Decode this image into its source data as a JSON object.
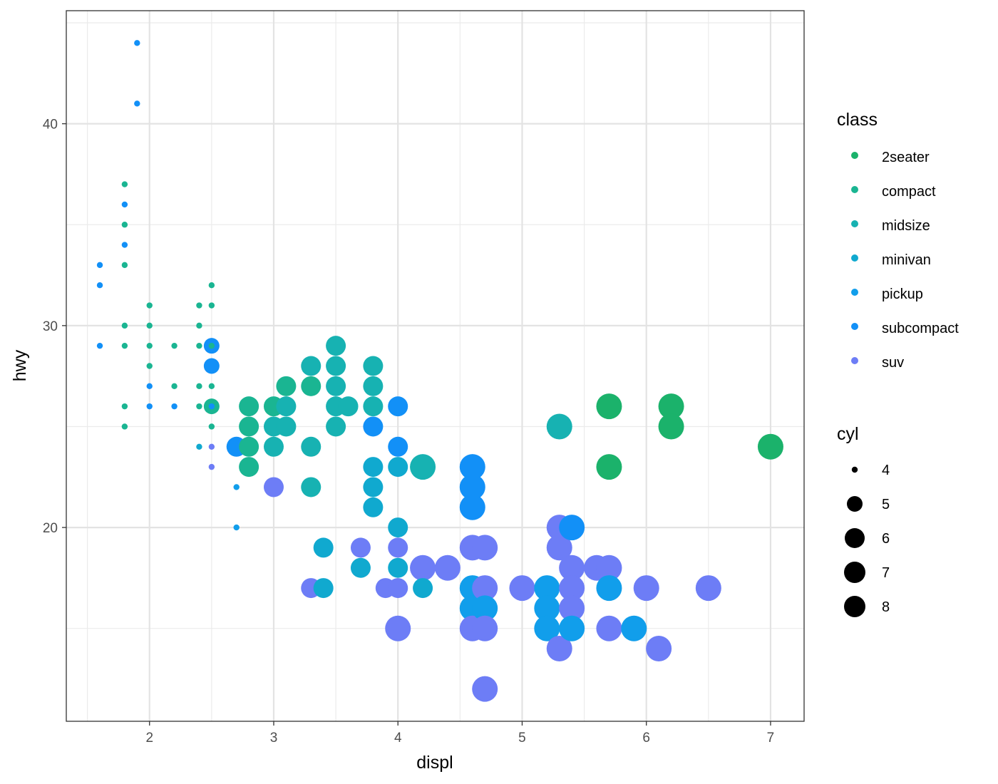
{
  "chart_data": {
    "type": "scatter",
    "xlabel": "displ",
    "ylabel": "hwy",
    "xlim": [
      1.33,
      7.27
    ],
    "ylim": [
      10.4,
      45.6
    ],
    "x_ticks": [
      2,
      3,
      4,
      5,
      6,
      7
    ],
    "y_ticks": [
      20,
      30,
      40
    ],
    "x_tick_labels": [
      "2",
      "3",
      "4",
      "5",
      "6",
      "7"
    ],
    "y_tick_labels": [
      "20",
      "30",
      "40"
    ],
    "grid": true,
    "legend_position": "right",
    "color_legend": {
      "title": "class",
      "entries": [
        {
          "label": "2seater",
          "color": "#1BB26B"
        },
        {
          "label": "compact",
          "color": "#1AB592"
        },
        {
          "label": "midsize",
          "color": "#17B2B2"
        },
        {
          "label": "minivan",
          "color": "#10A9CF"
        },
        {
          "label": "pickup",
          "color": "#119EEB"
        },
        {
          "label": "subcompact",
          "color": "#1290F7"
        },
        {
          "label": "suv",
          "color": "#6D7DF6"
        }
      ]
    },
    "size_legend": {
      "title": "cyl",
      "entries": [
        {
          "label": "4",
          "value": 4
        },
        {
          "label": "5",
          "value": 5
        },
        {
          "label": "6",
          "value": 6
        },
        {
          "label": "7",
          "value": 7
        },
        {
          "label": "8",
          "value": 8
        }
      ]
    },
    "points": [
      {
        "displ": 1.9,
        "hwy": 44,
        "class": "subcompact",
        "cyl": 4
      },
      {
        "displ": 1.9,
        "hwy": 41,
        "class": "subcompact",
        "cyl": 4
      },
      {
        "displ": 1.8,
        "hwy": 37,
        "class": "compact",
        "cyl": 4
      },
      {
        "displ": 1.8,
        "hwy": 36,
        "class": "subcompact",
        "cyl": 4
      },
      {
        "displ": 1.8,
        "hwy": 35,
        "class": "compact",
        "cyl": 4
      },
      {
        "displ": 1.8,
        "hwy": 34,
        "class": "subcompact",
        "cyl": 4
      },
      {
        "displ": 1.8,
        "hwy": 33,
        "class": "compact",
        "cyl": 4
      },
      {
        "displ": 1.6,
        "hwy": 33,
        "class": "subcompact",
        "cyl": 4
      },
      {
        "displ": 1.6,
        "hwy": 32,
        "class": "subcompact",
        "cyl": 4
      },
      {
        "displ": 1.6,
        "hwy": 29,
        "class": "subcompact",
        "cyl": 4
      },
      {
        "displ": 1.8,
        "hwy": 30,
        "class": "compact",
        "cyl": 4
      },
      {
        "displ": 1.8,
        "hwy": 29,
        "class": "compact",
        "cyl": 4
      },
      {
        "displ": 1.8,
        "hwy": 26,
        "class": "compact",
        "cyl": 4
      },
      {
        "displ": 1.8,
        "hwy": 25,
        "class": "compact",
        "cyl": 4
      },
      {
        "displ": 2.0,
        "hwy": 31,
        "class": "compact",
        "cyl": 4
      },
      {
        "displ": 2.0,
        "hwy": 30,
        "class": "compact",
        "cyl": 4
      },
      {
        "displ": 2.0,
        "hwy": 29,
        "class": "compact",
        "cyl": 4
      },
      {
        "displ": 2.0,
        "hwy": 28,
        "class": "compact",
        "cyl": 4
      },
      {
        "displ": 2.0,
        "hwy": 27,
        "class": "subcompact",
        "cyl": 4
      },
      {
        "displ": 2.0,
        "hwy": 26,
        "class": "subcompact",
        "cyl": 4
      },
      {
        "displ": 2.2,
        "hwy": 29,
        "class": "compact",
        "cyl": 4
      },
      {
        "displ": 2.2,
        "hwy": 27,
        "class": "compact",
        "cyl": 4
      },
      {
        "displ": 2.2,
        "hwy": 26,
        "class": "subcompact",
        "cyl": 4
      },
      {
        "displ": 2.4,
        "hwy": 31,
        "class": "compact",
        "cyl": 4
      },
      {
        "displ": 2.4,
        "hwy": 30,
        "class": "compact",
        "cyl": 4
      },
      {
        "displ": 2.4,
        "hwy": 29,
        "class": "compact",
        "cyl": 4
      },
      {
        "displ": 2.4,
        "hwy": 27,
        "class": "compact",
        "cyl": 4
      },
      {
        "displ": 2.4,
        "hwy": 26,
        "class": "compact",
        "cyl": 4
      },
      {
        "displ": 2.4,
        "hwy": 24,
        "class": "minivan",
        "cyl": 4
      },
      {
        "displ": 2.5,
        "hwy": 32,
        "class": "compact",
        "cyl": 4
      },
      {
        "displ": 2.5,
        "hwy": 31,
        "class": "compact",
        "cyl": 4
      },
      {
        "displ": 2.5,
        "hwy": 29,
        "class": "compact",
        "cyl": 4
      },
      {
        "displ": 2.5,
        "hwy": 27,
        "class": "compact",
        "cyl": 4
      },
      {
        "displ": 2.5,
        "hwy": 26,
        "class": "subcompact",
        "cyl": 4
      },
      {
        "displ": 2.5,
        "hwy": 25,
        "class": "compact",
        "cyl": 4
      },
      {
        "displ": 2.5,
        "hwy": 24,
        "class": "suv",
        "cyl": 4
      },
      {
        "displ": 2.5,
        "hwy": 23,
        "class": "suv",
        "cyl": 4
      },
      {
        "displ": 2.7,
        "hwy": 22,
        "class": "pickup",
        "cyl": 4
      },
      {
        "displ": 2.7,
        "hwy": 20,
        "class": "pickup",
        "cyl": 4
      },
      {
        "displ": 2.5,
        "hwy": 29,
        "class": "subcompact",
        "cyl": 5
      },
      {
        "displ": 2.5,
        "hwy": 28,
        "class": "subcompact",
        "cyl": 5
      },
      {
        "displ": 2.5,
        "hwy": 26,
        "class": "compact",
        "cyl": 5
      },
      {
        "displ": 2.7,
        "hwy": 24,
        "class": "subcompact",
        "cyl": 6
      },
      {
        "displ": 2.8,
        "hwy": 26,
        "class": "compact",
        "cyl": 6
      },
      {
        "displ": 2.8,
        "hwy": 25,
        "class": "compact",
        "cyl": 6
      },
      {
        "displ": 2.8,
        "hwy": 24,
        "class": "compact",
        "cyl": 6
      },
      {
        "displ": 2.8,
        "hwy": 23,
        "class": "compact",
        "cyl": 6
      },
      {
        "displ": 3.0,
        "hwy": 26,
        "class": "compact",
        "cyl": 6
      },
      {
        "displ": 3.0,
        "hwy": 25,
        "class": "midsize",
        "cyl": 6
      },
      {
        "displ": 3.0,
        "hwy": 24,
        "class": "midsize",
        "cyl": 6
      },
      {
        "displ": 3.0,
        "hwy": 22,
        "class": "suv",
        "cyl": 6
      },
      {
        "displ": 3.1,
        "hwy": 27,
        "class": "compact",
        "cyl": 6
      },
      {
        "displ": 3.1,
        "hwy": 26,
        "class": "midsize",
        "cyl": 6
      },
      {
        "displ": 3.1,
        "hwy": 25,
        "class": "midsize",
        "cyl": 6
      },
      {
        "displ": 3.3,
        "hwy": 28,
        "class": "midsize",
        "cyl": 6
      },
      {
        "displ": 3.3,
        "hwy": 27,
        "class": "compact",
        "cyl": 6
      },
      {
        "displ": 3.3,
        "hwy": 24,
        "class": "midsize",
        "cyl": 6
      },
      {
        "displ": 3.3,
        "hwy": 22,
        "class": "midsize",
        "cyl": 6
      },
      {
        "displ": 3.3,
        "hwy": 17,
        "class": "suv",
        "cyl": 6
      },
      {
        "displ": 3.4,
        "hwy": 19,
        "class": "minivan",
        "cyl": 6
      },
      {
        "displ": 3.4,
        "hwy": 17,
        "class": "minivan",
        "cyl": 6
      },
      {
        "displ": 3.5,
        "hwy": 29,
        "class": "midsize",
        "cyl": 6
      },
      {
        "displ": 3.5,
        "hwy": 28,
        "class": "midsize",
        "cyl": 6
      },
      {
        "displ": 3.5,
        "hwy": 27,
        "class": "midsize",
        "cyl": 6
      },
      {
        "displ": 3.5,
        "hwy": 26,
        "class": "midsize",
        "cyl": 6
      },
      {
        "displ": 3.5,
        "hwy": 25,
        "class": "midsize",
        "cyl": 6
      },
      {
        "displ": 3.6,
        "hwy": 26,
        "class": "midsize",
        "cyl": 6
      },
      {
        "displ": 3.7,
        "hwy": 19,
        "class": "suv",
        "cyl": 6
      },
      {
        "displ": 3.7,
        "hwy": 18,
        "class": "minivan",
        "cyl": 6
      },
      {
        "displ": 3.8,
        "hwy": 28,
        "class": "midsize",
        "cyl": 6
      },
      {
        "displ": 3.8,
        "hwy": 27,
        "class": "midsize",
        "cyl": 6
      },
      {
        "displ": 3.8,
        "hwy": 26,
        "class": "midsize",
        "cyl": 6
      },
      {
        "displ": 3.8,
        "hwy": 25,
        "class": "subcompact",
        "cyl": 6
      },
      {
        "displ": 3.8,
        "hwy": 23,
        "class": "minivan",
        "cyl": 6
      },
      {
        "displ": 3.8,
        "hwy": 22,
        "class": "minivan",
        "cyl": 6
      },
      {
        "displ": 3.8,
        "hwy": 21,
        "class": "minivan",
        "cyl": 6
      },
      {
        "displ": 3.9,
        "hwy": 17,
        "class": "suv",
        "cyl": 6
      },
      {
        "displ": 4.0,
        "hwy": 26,
        "class": "subcompact",
        "cyl": 6
      },
      {
        "displ": 4.0,
        "hwy": 24,
        "class": "subcompact",
        "cyl": 6
      },
      {
        "displ": 4.0,
        "hwy": 23,
        "class": "minivan",
        "cyl": 6
      },
      {
        "displ": 4.0,
        "hwy": 20,
        "class": "minivan",
        "cyl": 6
      },
      {
        "displ": 4.0,
        "hwy": 19,
        "class": "suv",
        "cyl": 6
      },
      {
        "displ": 4.0,
        "hwy": 18,
        "class": "minivan",
        "cyl": 6
      },
      {
        "displ": 4.0,
        "hwy": 17,
        "class": "suv",
        "cyl": 6
      },
      {
        "displ": 4.0,
        "hwy": 15,
        "class": "suv",
        "cyl": 8
      },
      {
        "displ": 4.2,
        "hwy": 23,
        "class": "midsize",
        "cyl": 8
      },
      {
        "displ": 4.2,
        "hwy": 18,
        "class": "suv",
        "cyl": 8
      },
      {
        "displ": 4.2,
        "hwy": 17,
        "class": "minivan",
        "cyl": 6
      },
      {
        "displ": 4.4,
        "hwy": 18,
        "class": "suv",
        "cyl": 8
      },
      {
        "displ": 4.6,
        "hwy": 23,
        "class": "subcompact",
        "cyl": 8
      },
      {
        "displ": 4.6,
        "hwy": 22,
        "class": "subcompact",
        "cyl": 8
      },
      {
        "displ": 4.6,
        "hwy": 21,
        "class": "subcompact",
        "cyl": 8
      },
      {
        "displ": 4.6,
        "hwy": 19,
        "class": "suv",
        "cyl": 8
      },
      {
        "displ": 4.6,
        "hwy": 17,
        "class": "pickup",
        "cyl": 8
      },
      {
        "displ": 4.6,
        "hwy": 16,
        "class": "pickup",
        "cyl": 8
      },
      {
        "displ": 4.6,
        "hwy": 15,
        "class": "suv",
        "cyl": 8
      },
      {
        "displ": 4.7,
        "hwy": 19,
        "class": "suv",
        "cyl": 8
      },
      {
        "displ": 4.7,
        "hwy": 17,
        "class": "suv",
        "cyl": 8
      },
      {
        "displ": 4.7,
        "hwy": 16,
        "class": "pickup",
        "cyl": 8
      },
      {
        "displ": 4.7,
        "hwy": 15,
        "class": "suv",
        "cyl": 8
      },
      {
        "displ": 4.7,
        "hwy": 12,
        "class": "suv",
        "cyl": 8
      },
      {
        "displ": 5.0,
        "hwy": 17,
        "class": "suv",
        "cyl": 8
      },
      {
        "displ": 5.2,
        "hwy": 17,
        "class": "pickup",
        "cyl": 8
      },
      {
        "displ": 5.2,
        "hwy": 16,
        "class": "pickup",
        "cyl": 8
      },
      {
        "displ": 5.2,
        "hwy": 15,
        "class": "pickup",
        "cyl": 8
      },
      {
        "displ": 5.3,
        "hwy": 25,
        "class": "midsize",
        "cyl": 8
      },
      {
        "displ": 5.3,
        "hwy": 20,
        "class": "suv",
        "cyl": 8
      },
      {
        "displ": 5.3,
        "hwy": 19,
        "class": "suv",
        "cyl": 8
      },
      {
        "displ": 5.3,
        "hwy": 14,
        "class": "suv",
        "cyl": 8
      },
      {
        "displ": 5.4,
        "hwy": 20,
        "class": "subcompact",
        "cyl": 8
      },
      {
        "displ": 5.4,
        "hwy": 18,
        "class": "suv",
        "cyl": 8
      },
      {
        "displ": 5.4,
        "hwy": 17,
        "class": "suv",
        "cyl": 8
      },
      {
        "displ": 5.4,
        "hwy": 16,
        "class": "suv",
        "cyl": 8
      },
      {
        "displ": 5.4,
        "hwy": 15,
        "class": "pickup",
        "cyl": 8
      },
      {
        "displ": 5.6,
        "hwy": 18,
        "class": "suv",
        "cyl": 8
      },
      {
        "displ": 5.7,
        "hwy": 26,
        "class": "2seater",
        "cyl": 8
      },
      {
        "displ": 5.7,
        "hwy": 23,
        "class": "2seater",
        "cyl": 8
      },
      {
        "displ": 5.7,
        "hwy": 18,
        "class": "suv",
        "cyl": 8
      },
      {
        "displ": 5.7,
        "hwy": 17,
        "class": "pickup",
        "cyl": 8
      },
      {
        "displ": 5.7,
        "hwy": 15,
        "class": "suv",
        "cyl": 8
      },
      {
        "displ": 5.9,
        "hwy": 15,
        "class": "pickup",
        "cyl": 8
      },
      {
        "displ": 6.0,
        "hwy": 17,
        "class": "suv",
        "cyl": 8
      },
      {
        "displ": 6.1,
        "hwy": 14,
        "class": "suv",
        "cyl": 8
      },
      {
        "displ": 6.2,
        "hwy": 26,
        "class": "2seater",
        "cyl": 8
      },
      {
        "displ": 6.2,
        "hwy": 25,
        "class": "2seater",
        "cyl": 8
      },
      {
        "displ": 6.5,
        "hwy": 17,
        "class": "suv",
        "cyl": 8
      },
      {
        "displ": 7.0,
        "hwy": 24,
        "class": "2seater",
        "cyl": 8
      }
    ]
  }
}
